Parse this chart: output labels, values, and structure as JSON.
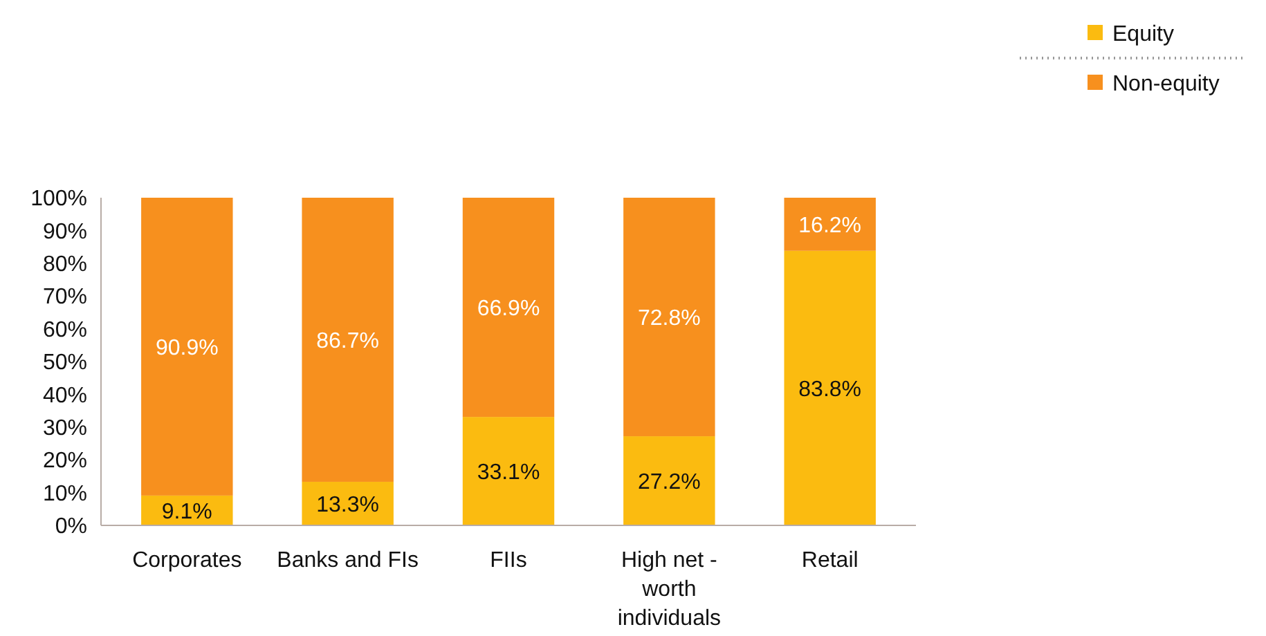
{
  "chart_data": {
    "type": "bar",
    "stacked": true,
    "categories": [
      "Corporates",
      "Banks and FIs",
      "FIIs",
      "High net -worth individuals",
      "Retail"
    ],
    "series": [
      {
        "name": "Equity",
        "color": "#fbbb10",
        "values": [
          9.1,
          13.3,
          33.1,
          27.2,
          83.8
        ],
        "value_labels": [
          "9.1%",
          "13.3%",
          "33.1%",
          "27.2%",
          "83.8%"
        ]
      },
      {
        "name": "Non-equity",
        "color": "#f7901e",
        "values": [
          90.9,
          86.7,
          66.9,
          72.8,
          16.2
        ],
        "value_labels": [
          "90.9%",
          "86.7%",
          "66.9%",
          "72.8%",
          "16.2%"
        ]
      }
    ],
    "ylim": [
      0,
      100
    ],
    "yticks": [
      {
        "value": 0,
        "label": "0%"
      },
      {
        "value": 10,
        "label": "10%"
      },
      {
        "value": 20,
        "label": "20%"
      },
      {
        "value": 30,
        "label": "30%"
      },
      {
        "value": 40,
        "label": "40%"
      },
      {
        "value": 50,
        "label": "50%"
      },
      {
        "value": 60,
        "label": "60%"
      },
      {
        "value": 70,
        "label": "70%"
      },
      {
        "value": 80,
        "label": "80%"
      },
      {
        "value": 90,
        "label": "90%"
      },
      {
        "value": 100,
        "label": "100%"
      }
    ],
    "grid": false,
    "legend": "top right"
  }
}
